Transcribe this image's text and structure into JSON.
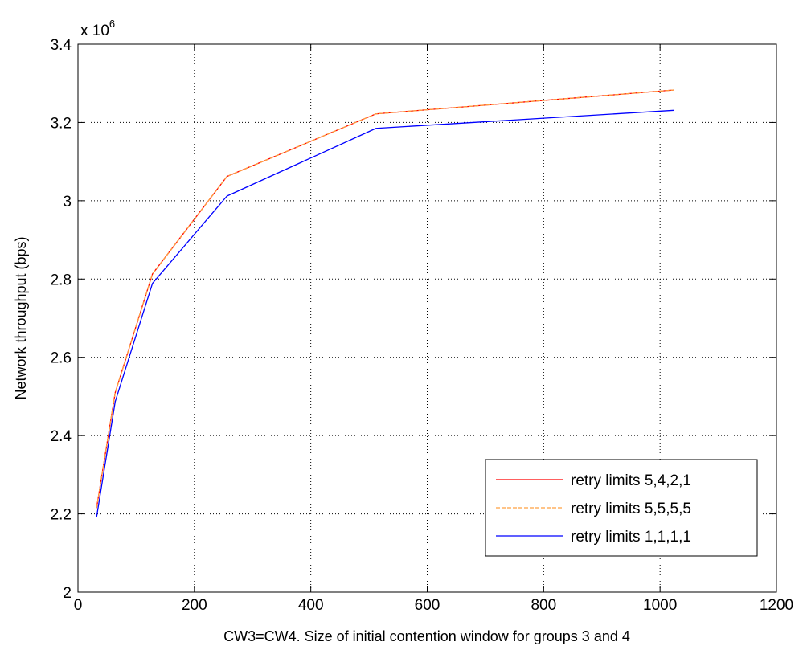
{
  "chart_data": {
    "type": "line",
    "title": "",
    "xlabel": "CW3=CW4. Size of initial contention window for groups 3 and 4",
    "ylabel": "Network throughput (bps)",
    "y_multiplier": {
      "base": "x 10",
      "exponent": "6"
    },
    "xlim": [
      0,
      1200
    ],
    "ylim": [
      2,
      3.4
    ],
    "x_ticks": [
      0,
      200,
      400,
      600,
      800,
      1000,
      1200
    ],
    "x_tick_labels": [
      "0",
      "200",
      "400",
      "600",
      "800",
      "1000",
      "1200"
    ],
    "y_ticks": [
      2,
      2.2,
      2.4,
      2.6,
      2.8,
      3,
      3.2,
      3.4
    ],
    "y_tick_labels": [
      "2",
      "2.2",
      "2.4",
      "2.6",
      "2.8",
      "3",
      "3.2",
      "3.4"
    ],
    "grid": true,
    "legend_position": "bottom-right",
    "x": [
      32,
      64,
      128,
      256,
      512,
      1024
    ],
    "series": [
      {
        "name": "retry limits 5,4,2,1",
        "color": "#ff0000",
        "dash": "solid",
        "values": [
          2.215,
          2.51,
          2.813,
          3.062,
          3.222,
          3.283
        ]
      },
      {
        "name": "retry limits 5,5,5,5",
        "color": "#ffa040",
        "dash": "dashed",
        "values": [
          2.215,
          2.51,
          2.813,
          3.062,
          3.222,
          3.283
        ]
      },
      {
        "name": "retry limits 1,1,1,1",
        "color": "#0000ff",
        "dash": "solid",
        "values": [
          2.192,
          2.487,
          2.789,
          3.012,
          3.185,
          3.231
        ]
      }
    ]
  }
}
